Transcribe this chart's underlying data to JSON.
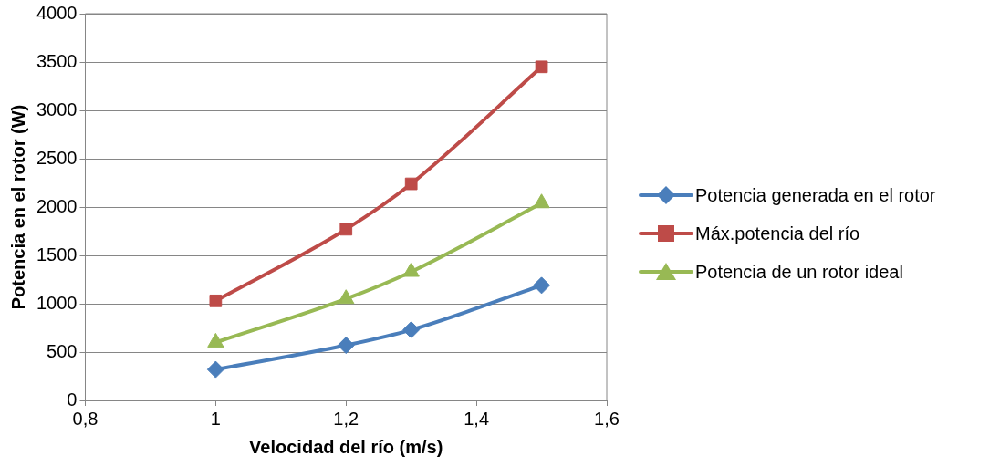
{
  "chart_data": {
    "type": "line",
    "xlabel": "Velocidad del río (m/s)",
    "ylabel": "Potencia en el rotor (W)",
    "x": [
      1,
      1.2,
      1.3,
      1.5
    ],
    "series": [
      {
        "name": "Potencia generada en el rotor",
        "color": "#4a7ebb",
        "marker": "diamond",
        "values": [
          320,
          570,
          730,
          1190
        ]
      },
      {
        "name": "Máx.potencia del río",
        "color": "#be4b48",
        "marker": "square",
        "values": [
          1030,
          1770,
          2240,
          3450
        ]
      },
      {
        "name": "Potencia de un rotor ideal",
        "color": "#98b954",
        "marker": "triangle",
        "values": [
          600,
          1050,
          1330,
          2040
        ]
      }
    ],
    "xlim": [
      0.8,
      1.6
    ],
    "xticks": [
      {
        "value": 0.8,
        "label": "0,8"
      },
      1,
      {
        "value": 1.2,
        "label": "1,2"
      },
      {
        "value": 1.4,
        "label": "1,4"
      },
      {
        "value": 1.6,
        "label": "1,6"
      }
    ],
    "ylim": [
      0,
      4000
    ],
    "yticks": [
      0,
      500,
      1000,
      1500,
      2000,
      2500,
      3000,
      3500,
      4000
    ],
    "grid": "y",
    "legend": "right",
    "line_style": "solid"
  }
}
